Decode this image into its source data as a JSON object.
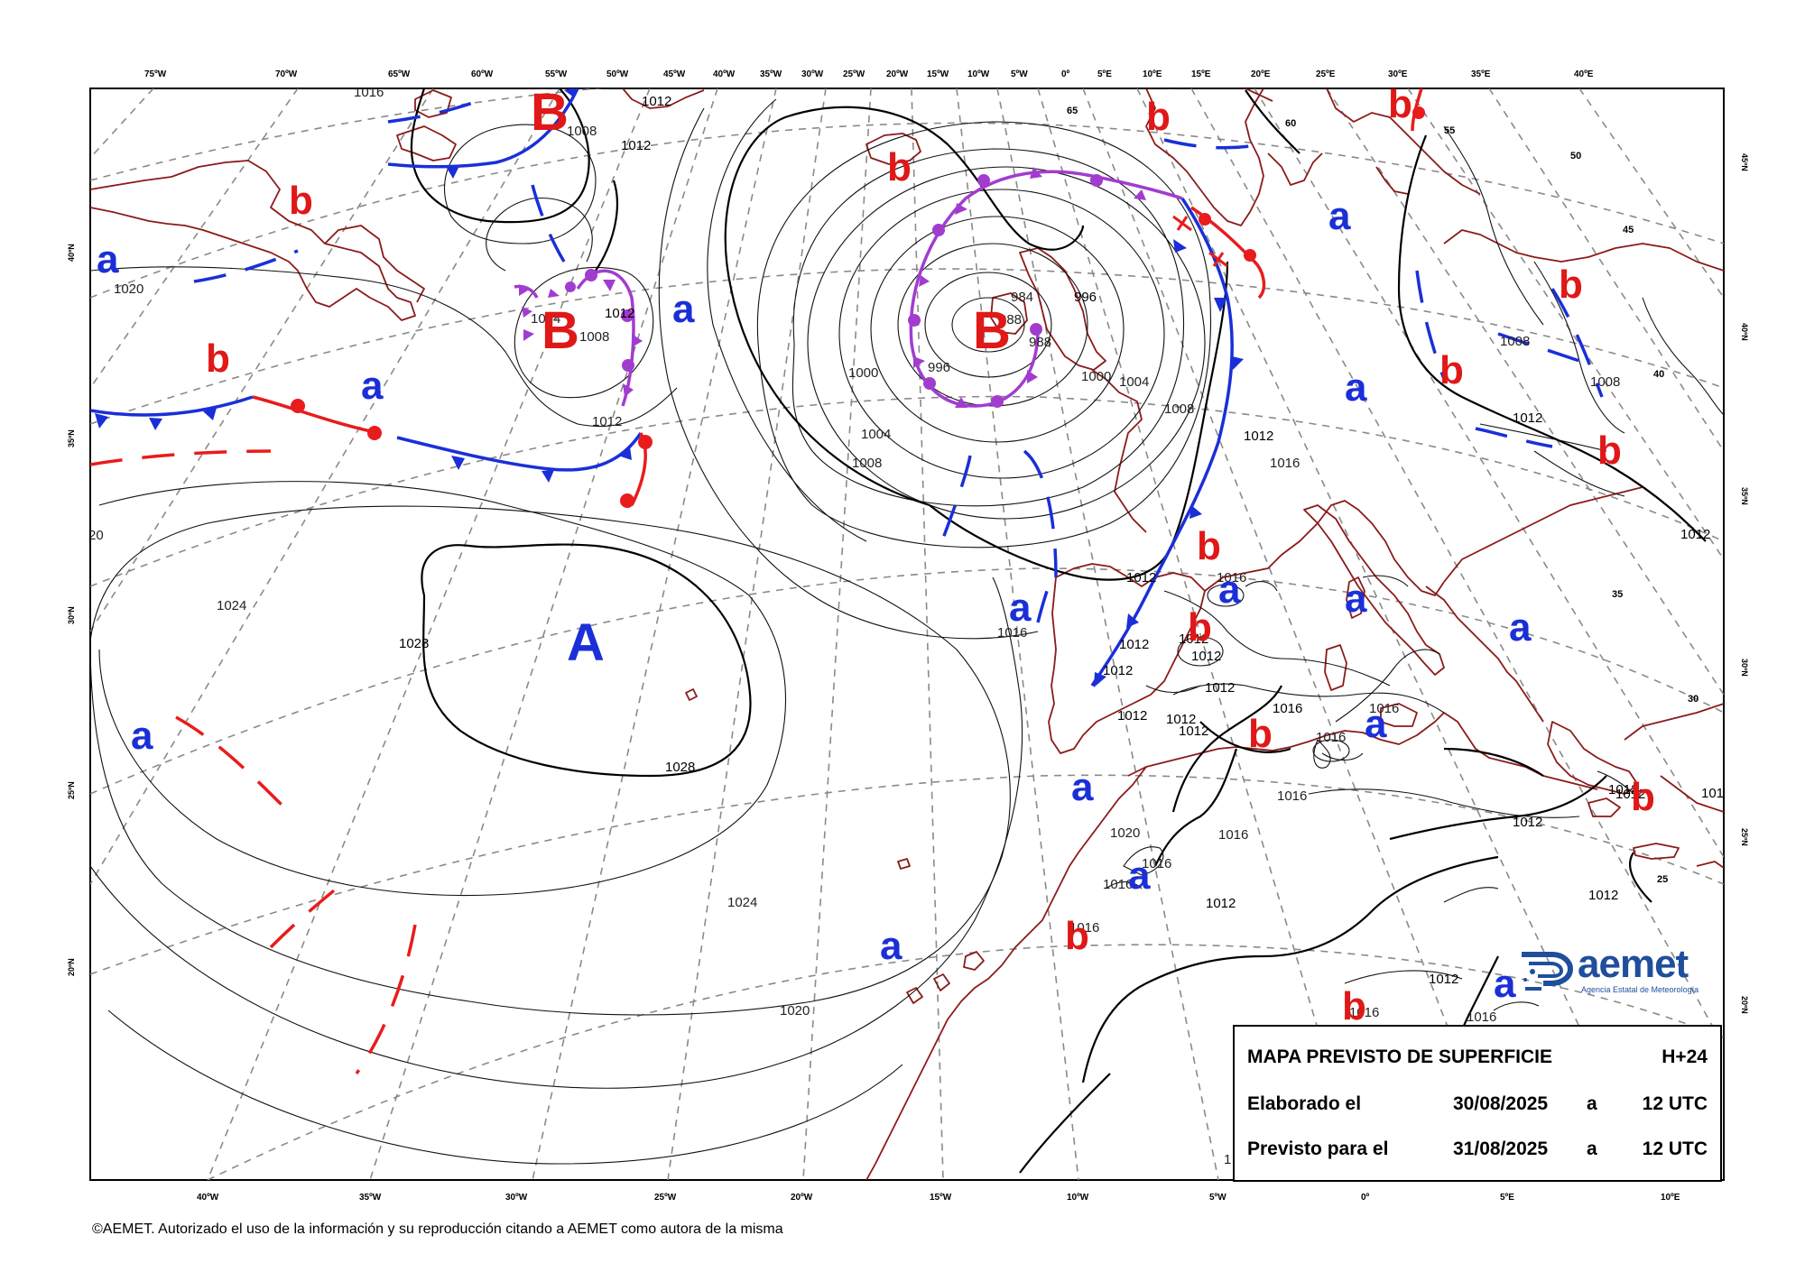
{
  "map": {
    "lon_labels_top": [
      "75ºW",
      "70ºW",
      "65ºW",
      "60ºW",
      "55ºW",
      "50ºW",
      "45ºW",
      "40ºW",
      "35ºW",
      "30ºW",
      "25ºW",
      "20ºW",
      "15ºW",
      "10ºW",
      "5ºW",
      "0º",
      "5ºE",
      "10ºE",
      "15ºE",
      "20ºE",
      "25ºE",
      "30ºE",
      "35ºE",
      "40ºE"
    ],
    "lon_labels_bottom": [
      "40ºW",
      "35ºW",
      "30ºW",
      "25ºW",
      "20ºW",
      "15ºW",
      "10ºW",
      "5ºW",
      "0º",
      "5ºE",
      "10ºE"
    ],
    "lat_labels_left": [
      "40ºN",
      "35ºN",
      "30ºN",
      "25ºN",
      "20ºN"
    ],
    "lat_labels_right": [
      "45ºN",
      "40ºN",
      "35ºN",
      "30ºN",
      "25ºN",
      "20ºN"
    ],
    "inner_grid_labels": [
      "65",
      "60",
      "55",
      "50",
      "45",
      "40",
      "35",
      "30",
      "25"
    ],
    "isobar_labels": [
      "1016",
      "1012",
      "1012",
      "1008",
      "1020",
      "1004",
      "1008",
      "1012",
      "1012",
      "1000",
      "996",
      "1004",
      "1008",
      "984",
      "988",
      "988",
      "996",
      "1000",
      "1004",
      "1008",
      "1012",
      "1016",
      "1028",
      "1028",
      "1024",
      "1024",
      "1020",
      "1016",
      "1016",
      "1012",
      "1012",
      "1012",
      "1012",
      "1012",
      "1012",
      "1012",
      "1012",
      "1012",
      "1016",
      "1016",
      "1016",
      "1016",
      "1016",
      "1020",
      "1016",
      "1016",
      "1016",
      "1012",
      "1012",
      "1012",
      "1012",
      "1012",
      "1012",
      "1012",
      "1012",
      "1012",
      "1016",
      "1016",
      "1008",
      "1008",
      "20",
      "1"
    ],
    "pressure_letters": {
      "high_major": "A",
      "low_major": "B",
      "high_minor": "a",
      "low_minor": "b"
    },
    "colors": {
      "cold_front": "#1a2fd8",
      "warm_front": "#e81c1c",
      "occluded_front": "#a23ccf",
      "coastline": "#8b1a1a",
      "high_letter": "#1a2fd8",
      "low_letter": "#e01818",
      "isobar": "#000000",
      "grid": "#8a8a8a"
    }
  },
  "legend": {
    "title": "MAPA PREVISTO DE SUPERFICIE",
    "horizon": "H+24",
    "made_label": "Elaborado el",
    "made_date": "30/08/2025",
    "made_at": "a",
    "made_time": "12 UTC",
    "valid_label": "Previsto para el",
    "valid_date": "31/08/2025",
    "valid_at": "a",
    "valid_time": "12 UTC"
  },
  "logo": {
    "name": "aemet",
    "subtitle": "Agencia Estatal de Meteorología"
  },
  "copyright": "©AEMET. Autorizado el uso de la información y su reproducción citando a AEMET como autora de la misma"
}
